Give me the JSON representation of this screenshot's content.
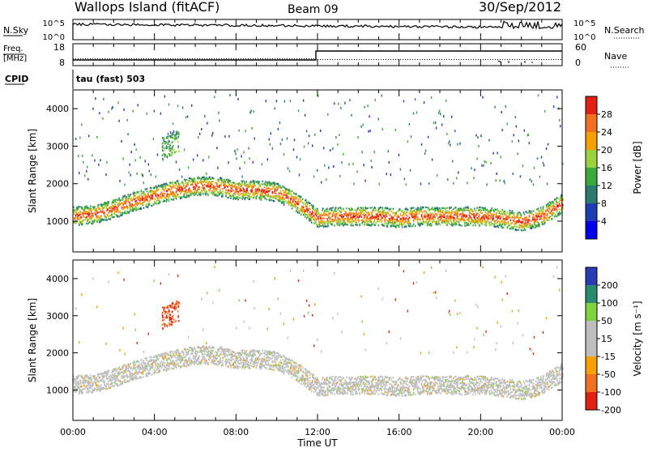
{
  "header": {
    "station": "Wallops Island (fitACF)",
    "beam": "Beam 09",
    "date": "30/Sep/2012"
  },
  "noise_panel": {
    "left_label": "N.Sky",
    "left_ticks": [
      "10^5",
      "10^0"
    ],
    "right_label": "N.Search",
    "right_ticks": [
      "10^5",
      "10^0"
    ]
  },
  "freq_panel": {
    "left_label_top": "Freq.",
    "left_label_unit": "[MHz]",
    "left_ticks": [
      "18",
      "8"
    ],
    "right_label": "Nave",
    "right_ticks": [
      "60",
      "0"
    ]
  },
  "cpid": {
    "label": "CPID",
    "value": "tau (fast) 503"
  },
  "colors": {
    "power": [
      "#0000ee",
      "#1e3cb4",
      "#2a7a6e",
      "#3aa83a",
      "#9ad23c",
      "#f5a000",
      "#f07020",
      "#e02010"
    ],
    "velocity": [
      "#2a3cb4",
      "#2a8a6e",
      "#7ed23c",
      "#bebebe",
      "#bebebe",
      "#f5a000",
      "#f07020",
      "#e02010"
    ]
  },
  "chart_data": [
    {
      "type": "heatmap",
      "quantity": "Power",
      "xlabel": "",
      "ylabel": "Slant Range [km]",
      "colorbar_label": "Power [dB]",
      "colorbar_ticks": [
        "28",
        "24",
        "20",
        "16",
        "12",
        "8",
        "4"
      ],
      "xlim": [
        0,
        24
      ],
      "ylim": [
        180,
        4500
      ],
      "y_ticks": [
        "1000",
        "2000",
        "3000",
        "4000"
      ],
      "scatter_band": {
        "x_hours": [
          0,
          1,
          2,
          3,
          4,
          5,
          6,
          7,
          8,
          9,
          10,
          11,
          12,
          13,
          14,
          15,
          16,
          17,
          18,
          19,
          20,
          21,
          22,
          23,
          24
        ],
        "center_km": [
          1150,
          1200,
          1350,
          1550,
          1700,
          1850,
          1950,
          1950,
          1850,
          1850,
          1800,
          1500,
          1100,
          1150,
          1150,
          1150,
          1100,
          1150,
          1150,
          1150,
          1150,
          1100,
          1000,
          1150,
          1500
        ]
      }
    },
    {
      "type": "heatmap",
      "quantity": "Velocity",
      "xlabel": "Time UT",
      "ylabel": "Slant Range [km]",
      "colorbar_label": "Velocity [m s⁻¹]",
      "colorbar_ticks": [
        "200",
        "100",
        "50",
        "15",
        "-15",
        "-50",
        "-100",
        "-200"
      ],
      "xlim": [
        0,
        24
      ],
      "ylim": [
        180,
        4500
      ],
      "x_ticks": [
        "00:00",
        "04:00",
        "08:00",
        "12:00",
        "16:00",
        "20:00",
        "00:00"
      ],
      "y_ticks": [
        "1000",
        "2000",
        "3000",
        "4000"
      ]
    }
  ]
}
